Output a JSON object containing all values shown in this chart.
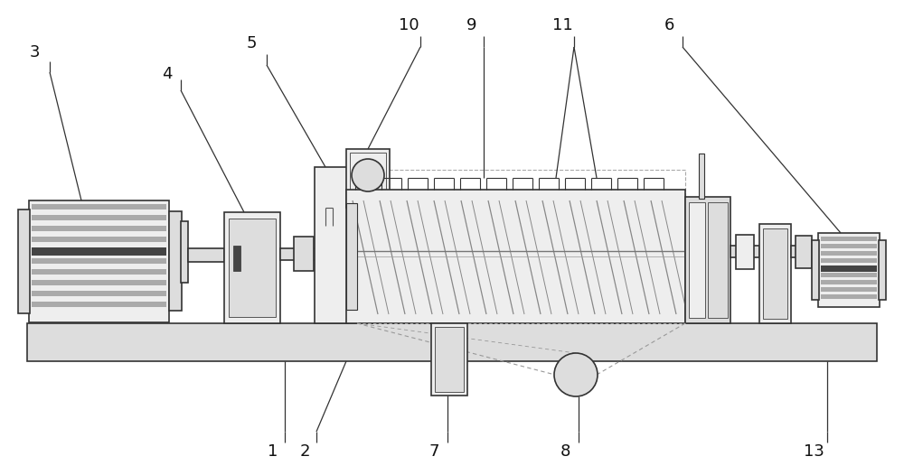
{
  "bg": "#ffffff",
  "lc": "#555555",
  "lc2": "#333333",
  "g1": "#eeeeee",
  "g2": "#dddddd",
  "g3": "#aaaaaa",
  "dk": "#444444",
  "ds": "#999999",
  "figw": 10.0,
  "figh": 5.26
}
